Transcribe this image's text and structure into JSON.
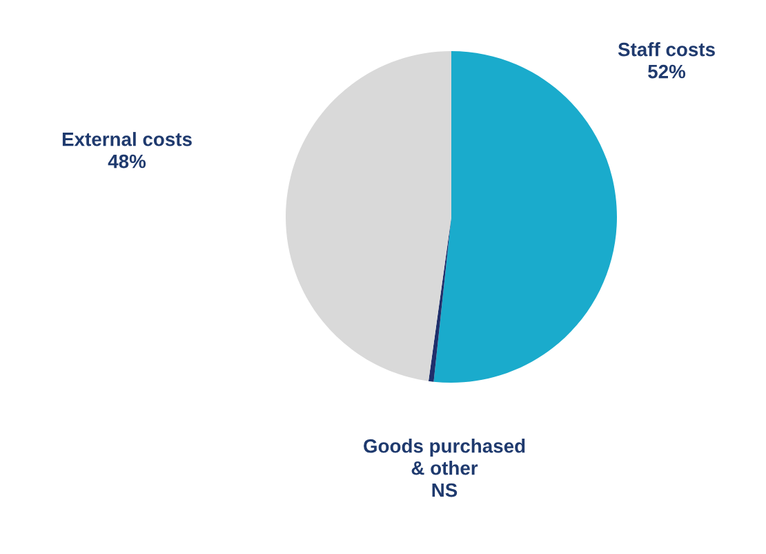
{
  "chart_data": {
    "type": "pie",
    "categories": [
      "Staff costs",
      "Goods purchased\n& other",
      "External costs"
    ],
    "values": [
      51.7,
      0.5,
      47.8
    ],
    "value_labels": [
      "52%",
      "NS",
      "48%"
    ],
    "colors": [
      "#1aabcc",
      "#1f2f6b",
      "#d9d9d9"
    ]
  }
}
